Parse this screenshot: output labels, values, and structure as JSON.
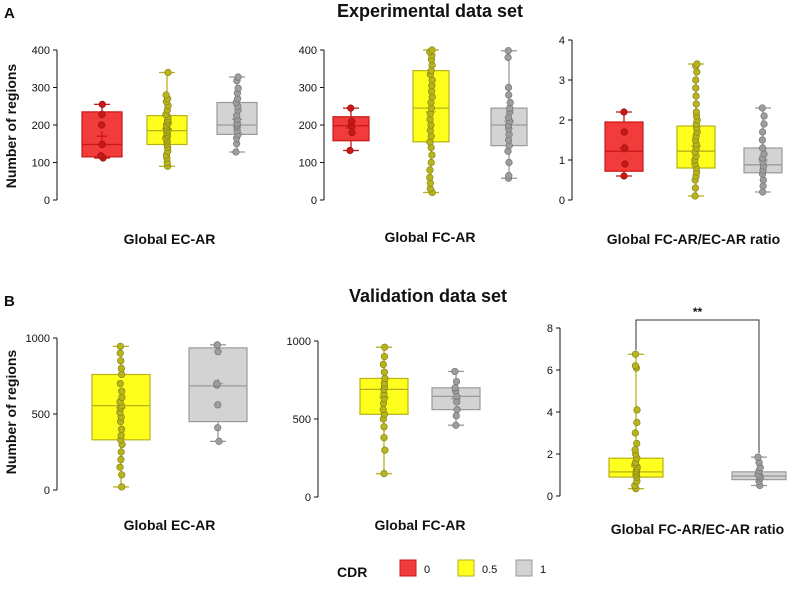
{
  "panel_labels": {
    "A": "A",
    "B": "B"
  },
  "section_titles": {
    "experimental": "Experimental data set",
    "validation": "Validation data set"
  },
  "y_axis_label": "Number of regions",
  "legend": {
    "title": "CDR",
    "items": [
      {
        "label": "0",
        "fill": "#f23b3b",
        "stroke": "#c81818"
      },
      {
        "label": "0.5",
        "fill": "#ffff1e",
        "stroke": "#b6b21a"
      },
      {
        "label": "1",
        "fill": "#d3d3d3",
        "stroke": "#9a9a9a"
      }
    ]
  },
  "colors": {
    "0": {
      "fill": "#f23b3b",
      "stroke": "#c81818",
      "point": "#c81818",
      "point_edge": "#8f1010"
    },
    "0.5": {
      "fill": "#ffff1e",
      "stroke": "#b6b21a",
      "point": "#b8b41c",
      "point_edge": "#7f7d10"
    },
    "1": {
      "fill": "#d3d3d3",
      "stroke": "#9a9a9a",
      "point": "#9d9d9d",
      "point_edge": "#6e6e6e"
    }
  },
  "significance": {
    "label": "**"
  },
  "chart_data": [
    {
      "id": "exp-ec",
      "type": "box",
      "xlabel": "Global EC-AR",
      "ylim": [
        0,
        400
      ],
      "yticks": [
        0,
        100,
        200,
        300,
        400
      ],
      "boxes": [
        {
          "group": "0",
          "min": 112,
          "q1": 115,
          "median": 148,
          "q3": 235,
          "max": 255,
          "mean": 170,
          "points": [
            112,
            118,
            148,
            200,
            228,
            255
          ]
        },
        {
          "group": "0.5",
          "min": 90,
          "q1": 148,
          "median": 185,
          "q3": 225,
          "max": 340,
          "mean": 190,
          "points": [
            90,
            100,
            112,
            120,
            130,
            140,
            148,
            155,
            160,
            165,
            170,
            175,
            180,
            185,
            190,
            195,
            200,
            205,
            210,
            215,
            222,
            228,
            240,
            252,
            262,
            270,
            280,
            340
          ]
        },
        {
          "group": "1",
          "min": 128,
          "q1": 175,
          "median": 200,
          "q3": 260,
          "max": 328,
          "mean": 215,
          "points": [
            128,
            150,
            165,
            175,
            185,
            195,
            200,
            205,
            215,
            225,
            240,
            250,
            260,
            270,
            285,
            298,
            318,
            328
          ]
        }
      ]
    },
    {
      "id": "exp-fc",
      "type": "box",
      "xlabel": "Global FC-AR",
      "ylim": [
        0,
        400
      ],
      "yticks": [
        0,
        100,
        200,
        300,
        400
      ],
      "boxes": [
        {
          "group": "0",
          "min": 132,
          "q1": 158,
          "median": 198,
          "q3": 222,
          "max": 245,
          "mean": 192,
          "points": [
            132,
            180,
            198,
            210,
            245
          ]
        },
        {
          "group": "0.5",
          "min": 20,
          "q1": 155,
          "median": 245,
          "q3": 345,
          "max": 400,
          "mean": 235,
          "points": [
            20,
            30,
            45,
            60,
            80,
            100,
            120,
            140,
            155,
            170,
            185,
            200,
            215,
            230,
            245,
            260,
            275,
            290,
            305,
            320,
            335,
            345,
            360,
            375,
            385,
            395,
            400
          ]
        },
        {
          "group": "1",
          "min": 58,
          "q1": 145,
          "median": 200,
          "q3": 245,
          "max": 398,
          "mean": 210,
          "points": [
            58,
            65,
            100,
            130,
            145,
            160,
            175,
            190,
            200,
            210,
            220,
            235,
            245,
            260,
            280,
            300,
            380,
            398
          ]
        }
      ]
    },
    {
      "id": "exp-ratio",
      "type": "box",
      "xlabel": "Global FC-AR/EC-AR ratio",
      "ylim": [
        0,
        4
      ],
      "yticks": [
        0,
        1,
        2,
        3,
        4
      ],
      "boxes": [
        {
          "group": "0",
          "min": 0.6,
          "q1": 0.72,
          "median": 1.22,
          "q3": 1.95,
          "max": 2.2,
          "mean": 1.3,
          "points": [
            0.6,
            0.9,
            1.3,
            1.7,
            2.2
          ]
        },
        {
          "group": "0.5",
          "min": 0.1,
          "q1": 0.8,
          "median": 1.22,
          "q3": 1.85,
          "max": 3.4,
          "mean": 1.35,
          "points": [
            0.1,
            0.3,
            0.5,
            0.6,
            0.7,
            0.8,
            0.9,
            1.0,
            1.1,
            1.2,
            1.3,
            1.4,
            1.5,
            1.6,
            1.7,
            1.8,
            1.9,
            2.0,
            2.1,
            2.2,
            2.4,
            2.6,
            2.8,
            3.0,
            3.2,
            3.35,
            3.4
          ]
        },
        {
          "group": "1",
          "min": 0.2,
          "q1": 0.68,
          "median": 0.88,
          "q3": 1.3,
          "max": 2.3,
          "mean": 1.0,
          "points": [
            0.2,
            0.35,
            0.5,
            0.65,
            0.75,
            0.85,
            0.95,
            1.05,
            1.15,
            1.3,
            1.5,
            1.7,
            1.9,
            2.1,
            2.3
          ]
        }
      ]
    },
    {
      "id": "val-ec",
      "type": "box",
      "xlabel": "Global EC-AR",
      "ylim": [
        0,
        1000
      ],
      "yticks": [
        0,
        500,
        1000
      ],
      "boxes": [
        {
          "group": "0.5",
          "min": 20,
          "q1": 330,
          "median": 555,
          "q3": 760,
          "max": 945,
          "mean": 540,
          "points": [
            20,
            100,
            150,
            200,
            250,
            300,
            330,
            360,
            400,
            450,
            480,
            510,
            540,
            555,
            580,
            610,
            650,
            700,
            760,
            800,
            850,
            900,
            945
          ]
        },
        {
          "group": "1",
          "min": 320,
          "q1": 450,
          "median": 685,
          "q3": 935,
          "max": 955,
          "mean": 700,
          "points": [
            320,
            410,
            560,
            690,
            700,
            910,
            955
          ]
        }
      ]
    },
    {
      "id": "val-fc",
      "type": "box",
      "xlabel": "Global FC-AR",
      "ylim": [
        0,
        1000
      ],
      "yticks": [
        0,
        500,
        1000
      ],
      "boxes": [
        {
          "group": "0.5",
          "min": 150,
          "q1": 530,
          "median": 690,
          "q3": 760,
          "max": 960,
          "mean": 640,
          "points": [
            150,
            300,
            380,
            450,
            500,
            530,
            560,
            600,
            630,
            660,
            690,
            710,
            730,
            760,
            800,
            850,
            900,
            960
          ]
        },
        {
          "group": "1",
          "min": 460,
          "q1": 560,
          "median": 645,
          "q3": 700,
          "max": 805,
          "mean": 630,
          "points": [
            460,
            520,
            560,
            610,
            645,
            680,
            700,
            740,
            805
          ]
        }
      ]
    },
    {
      "id": "val-ratio",
      "type": "box",
      "xlabel": "Global FC-AR/EC-AR ratio",
      "ylim": [
        0,
        8
      ],
      "yticks": [
        0,
        2,
        4,
        6,
        8
      ],
      "boxes": [
        {
          "group": "0.5",
          "min": 0.35,
          "q1": 0.9,
          "median": 1.15,
          "q3": 1.8,
          "max": 6.75,
          "mean": 1.4,
          "points": [
            0.35,
            0.5,
            0.7,
            0.9,
            1.0,
            1.1,
            1.2,
            1.3,
            1.4,
            1.5,
            1.6,
            1.8,
            2.0,
            2.2,
            2.5,
            3.0,
            3.5,
            4.1,
            6.1,
            6.2,
            6.75
          ]
        },
        {
          "group": "1",
          "min": 0.5,
          "q1": 0.78,
          "median": 0.95,
          "q3": 1.15,
          "max": 1.85,
          "mean": 0.98,
          "points": [
            0.5,
            0.7,
            0.85,
            0.95,
            1.05,
            1.2,
            1.35,
            1.6,
            1.85
          ]
        }
      ]
    }
  ]
}
